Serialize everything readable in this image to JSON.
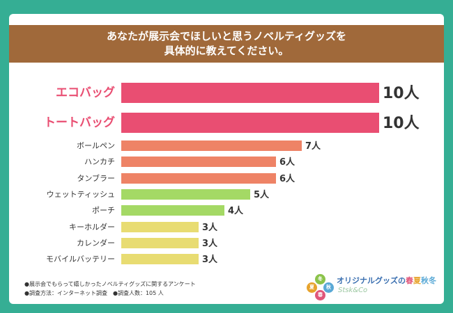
{
  "header": {
    "title_line1": "あなたが展示会でほしいと思うノベルティグッズを",
    "title_line2": "具体的に教えてください。"
  },
  "chart_data": {
    "type": "bar",
    "orientation": "horizontal",
    "title": "あなたが展示会でほしいと思うノベルティグッズを具体的に教えてください。",
    "unit": "人",
    "categories": [
      "エコバッグ",
      "トートバッグ",
      "ボールペン",
      "ハンカチ",
      "タンブラー",
      "ウェットティッシュ",
      "ポーチ",
      "キーホルダー",
      "カレンダー",
      "モバイルバッテリー"
    ],
    "values": [
      10,
      10,
      7,
      6,
      6,
      5,
      4,
      3,
      3,
      3
    ],
    "value_labels": [
      "10人",
      "10人",
      "7人",
      "6人",
      "6人",
      "5人",
      "4人",
      "3人",
      "3人",
      "3人"
    ],
    "colors": [
      "#e94e72",
      "#e94e72",
      "#ee8366",
      "#ee8366",
      "#ee8366",
      "#a4d965",
      "#a4d965",
      "#e8dc72",
      "#e8dc72",
      "#e8dc72"
    ],
    "emphasis": [
      true,
      true,
      false,
      false,
      false,
      false,
      false,
      false,
      false,
      false
    ],
    "xlim": [
      0,
      10
    ]
  },
  "footer": {
    "note1": "●展示会でもらって嬉しかったノベルティグッズに関するアンケート",
    "note2": "●調査方法：インターネット調査　●調査人数：105 人"
  },
  "logo": {
    "circles": [
      "冬",
      "夏",
      "秋",
      "春"
    ],
    "title_prefix": "オリジナルグッズの",
    "season1": "春",
    "season2": "夏",
    "season3": "秋",
    "season4": "冬",
    "sub": "Stsk&Co"
  }
}
